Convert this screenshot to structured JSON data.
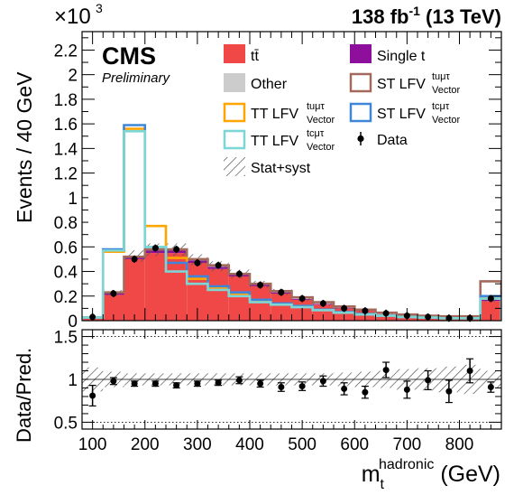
{
  "header": {
    "multiplier": "×10",
    "multiplier_exp": "3",
    "lumi": "138 fb",
    "lumi_exp": "-1",
    "energy": " (13 TeV)"
  },
  "brand": {
    "cms": "CMS",
    "preliminary": "Preliminary"
  },
  "legend": {
    "ttbar": "tt̄",
    "single_t": "Single t",
    "other": "Other",
    "st_lfv_tumutau": "ST LFV",
    "tt_lfv_tumutau": "TT LFV",
    "st_lfv_tcmutau": "ST LFV",
    "tt_lfv_tcmutau": "TT LFV",
    "data": "Data",
    "stat_syst": "Stat+syst",
    "sup_tumutau": "tuμτ",
    "sup_tcmutau": "tcμτ",
    "sub_vector": "Vector"
  },
  "colors": {
    "ttbar": "#f04747",
    "single_t": "#8e0f9c",
    "other": "#cccccc",
    "st_lfv_tumutau": "#a36a5c",
    "tt_lfv_tumutau": "#ffa500",
    "st_lfv_tcmutau": "#3f86d9",
    "tt_lfv_tcmutau": "#7dd6d6",
    "data": "#000000"
  },
  "chart_data": [
    {
      "type": "bar",
      "stacked": true,
      "ylabel": "Events / 40 GeV",
      "y_scale_note": "×10^3",
      "ylim": [
        0,
        2.35
      ],
      "xlim": [
        80,
        880
      ],
      "y_ticks": [
        "0",
        "0.2",
        "0.4",
        "0.6",
        "0.8",
        "1",
        "1.2",
        "1.4",
        "1.6",
        "1.8",
        "2",
        "2.2"
      ],
      "bin_edges": [
        80,
        120,
        160,
        200,
        240,
        280,
        320,
        360,
        400,
        440,
        480,
        520,
        560,
        600,
        640,
        680,
        720,
        760,
        800,
        840,
        880
      ],
      "series": [
        {
          "name": "tt̄",
          "kind": "stack",
          "values": [
            0.02,
            0.21,
            0.5,
            0.55,
            0.55,
            0.47,
            0.42,
            0.36,
            0.28,
            0.22,
            0.17,
            0.13,
            0.1,
            0.08,
            0.05,
            0.035,
            0.025,
            0.018,
            0.014,
            0.16
          ]
        },
        {
          "name": "Single t",
          "kind": "stack",
          "values": [
            0.005,
            0.012,
            0.02,
            0.022,
            0.022,
            0.02,
            0.018,
            0.015,
            0.012,
            0.01,
            0.008,
            0.006,
            0.005,
            0.004,
            0.003,
            0.002,
            0.002,
            0.0015,
            0.001,
            0.01
          ]
        },
        {
          "name": "Other",
          "kind": "stack",
          "values": [
            0.002,
            0.004,
            0.005,
            0.005,
            0.005,
            0.005,
            0.004,
            0.004,
            0.003,
            0.003,
            0.002,
            0.002,
            0.002,
            0.001,
            0.001,
            0.001,
            0.001,
            0.001,
            0.001,
            0.002
          ]
        },
        {
          "name": "ST LFV Vector tuμτ",
          "kind": "step",
          "values": [
            0.025,
            0.23,
            0.52,
            0.58,
            0.58,
            0.5,
            0.45,
            0.38,
            0.3,
            0.24,
            0.19,
            0.15,
            0.115,
            0.09,
            0.065,
            0.05,
            0.04,
            0.035,
            0.035,
            0.32
          ]
        },
        {
          "name": "TT LFV Vector tuμτ",
          "kind": "step",
          "values": [
            0.025,
            0.56,
            1.56,
            0.77,
            0.51,
            0.34,
            0.27,
            0.22,
            0.16,
            0.135,
            0.12,
            0.09,
            0.07,
            0.055,
            0.04,
            0.03,
            0.025,
            0.02,
            0.02,
            0.19
          ]
        },
        {
          "name": "ST LFV Vector tcμτ",
          "kind": "step",
          "values": [
            0.025,
            0.58,
            1.59,
            0.6,
            0.47,
            0.36,
            0.28,
            0.23,
            0.17,
            0.14,
            0.12,
            0.09,
            0.07,
            0.055,
            0.04,
            0.03,
            0.025,
            0.02,
            0.02,
            0.2
          ]
        },
        {
          "name": "TT LFV Vector tcμτ",
          "kind": "step",
          "values": [
            0.025,
            0.57,
            1.54,
            0.6,
            0.4,
            0.3,
            0.25,
            0.2,
            0.15,
            0.13,
            0.11,
            0.085,
            0.065,
            0.05,
            0.04,
            0.03,
            0.025,
            0.02,
            0.02,
            0.18
          ]
        }
      ],
      "data_points": {
        "name": "Data",
        "x": [
          100,
          140,
          180,
          220,
          260,
          300,
          340,
          380,
          420,
          460,
          500,
          540,
          580,
          620,
          660,
          700,
          740,
          780,
          820,
          860
        ],
        "y": [
          0.03,
          0.22,
          0.5,
          0.59,
          0.58,
          0.47,
          0.45,
          0.38,
          0.29,
          0.23,
          0.18,
          0.14,
          0.1,
          0.08,
          0.06,
          0.04,
          0.03,
          0.02,
          0.02,
          0.18
        ]
      }
    },
    {
      "type": "scatter",
      "xlabel": "m_t^hadronic (GeV)",
      "xlabel_main": "m",
      "xlabel_sub": "t",
      "xlabel_sup": "hadronic",
      "xlabel_unit": " (GeV)",
      "ylabel": "Data/Pred.",
      "ylim": [
        0.42,
        1.58
      ],
      "xlim": [
        80,
        880
      ],
      "y_ticks": [
        "0.5",
        "1",
        "1.5"
      ],
      "x_ticks": [
        "100",
        "200",
        "300",
        "400",
        "500",
        "600",
        "700",
        "800"
      ],
      "reference_lines": [
        0.5,
        1.0,
        1.5
      ],
      "x": [
        100,
        140,
        180,
        220,
        260,
        300,
        340,
        380,
        420,
        460,
        500,
        540,
        580,
        620,
        660,
        700,
        740,
        780,
        820,
        860
      ],
      "y": [
        0.81,
        0.98,
        0.95,
        0.95,
        0.93,
        0.95,
        0.96,
        0.99,
        0.95,
        0.91,
        0.92,
        0.98,
        0.89,
        0.85,
        1.11,
        0.88,
        0.99,
        0.86,
        1.1,
        0.91
      ],
      "y_err": [
        0.12,
        0.04,
        0.03,
        0.03,
        0.03,
        0.03,
        0.03,
        0.04,
        0.04,
        0.05,
        0.05,
        0.06,
        0.07,
        0.07,
        0.09,
        0.1,
        0.11,
        0.13,
        0.14,
        0.06
      ],
      "band_half_width": [
        0.14,
        0.09,
        0.07,
        0.07,
        0.07,
        0.07,
        0.07,
        0.07,
        0.07,
        0.07,
        0.07,
        0.07,
        0.08,
        0.09,
        0.1,
        0.12,
        0.13,
        0.15,
        0.17,
        0.1
      ]
    }
  ]
}
